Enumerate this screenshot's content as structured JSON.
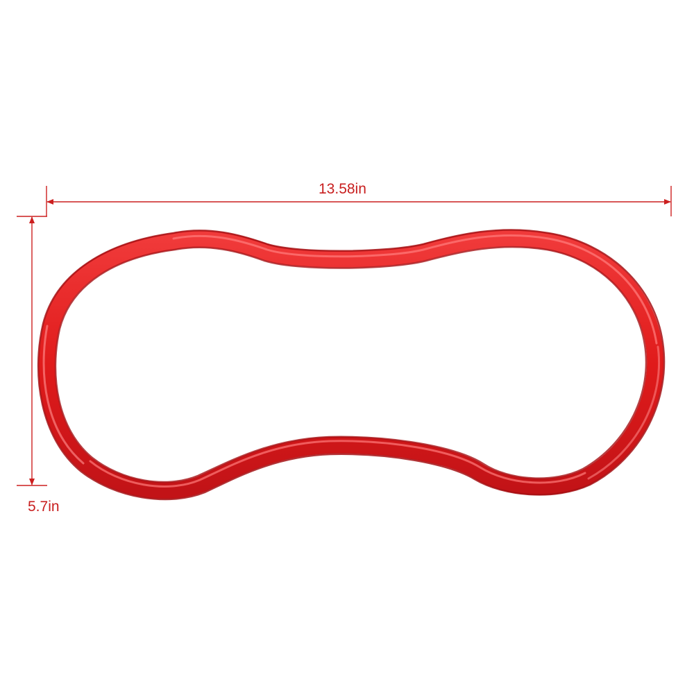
{
  "dimensions": {
    "width_label": "13.58in",
    "height_label": "5.7in"
  },
  "colors": {
    "background": "#ffffff",
    "dimension_lines": "#cc1f1f",
    "dimension_text": "#c81e1e",
    "ring_base": "#e01b1b",
    "ring_highlight": "#ff6a6a",
    "ring_shadow": "#a30f12"
  },
  "product": {
    "name_icon": "red-trim-ring"
  }
}
